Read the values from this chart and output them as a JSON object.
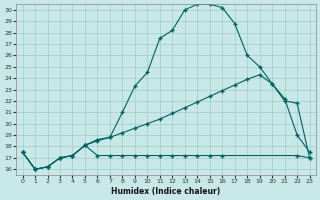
{
  "xlabel": "Humidex (Indice chaleur)",
  "bg_color": "#c8e8e8",
  "line_color": "#006060",
  "grid_color": "#a0cccc",
  "xlim": [
    -0.5,
    23.5
  ],
  "ylim": [
    15.5,
    30.5
  ],
  "yticks": [
    16,
    17,
    18,
    19,
    20,
    21,
    22,
    23,
    24,
    25,
    26,
    27,
    28,
    29,
    30
  ],
  "xticks": [
    0,
    1,
    2,
    3,
    4,
    5,
    6,
    7,
    8,
    9,
    10,
    11,
    12,
    13,
    14,
    15,
    16,
    17,
    18,
    19,
    20,
    21,
    22,
    23
  ],
  "curve_main_x": [
    0,
    1,
    2,
    3,
    4,
    5,
    6,
    7,
    8,
    9,
    10,
    11,
    12,
    13,
    14,
    15,
    16,
    17,
    18,
    19,
    20,
    21,
    22,
    23
  ],
  "curve_main_y": [
    17.5,
    16.0,
    16.2,
    17.0,
    17.2,
    18.1,
    18.6,
    18.8,
    21.0,
    23.3,
    24.5,
    27.5,
    28.2,
    30.0,
    30.5,
    30.5,
    30.2,
    28.8,
    26.0,
    25.0,
    23.5,
    22.2,
    19.0,
    17.5
  ],
  "curve_diag_x": [
    0,
    1,
    2,
    3,
    4,
    5,
    6,
    7,
    8,
    9,
    10,
    11,
    12,
    13,
    14,
    15,
    16,
    17,
    18,
    19,
    20,
    21,
    22,
    23
  ],
  "curve_diag_y": [
    17.5,
    16.0,
    16.2,
    17.0,
    17.2,
    18.1,
    18.5,
    18.8,
    19.2,
    19.6,
    20.0,
    20.4,
    20.9,
    21.4,
    21.9,
    22.4,
    22.9,
    23.4,
    23.9,
    24.3,
    23.5,
    22.0,
    21.8,
    17.0
  ],
  "curve_flat_x": [
    0,
    1,
    2,
    3,
    4,
    5,
    6,
    7,
    8,
    9,
    10,
    11,
    12,
    13,
    14,
    15,
    16,
    22,
    23
  ],
  "curve_flat_y": [
    17.5,
    16.0,
    16.2,
    17.0,
    17.2,
    18.1,
    17.2,
    17.2,
    17.2,
    17.2,
    17.2,
    17.2,
    17.2,
    17.2,
    17.2,
    17.2,
    17.2,
    17.2,
    17.0
  ]
}
